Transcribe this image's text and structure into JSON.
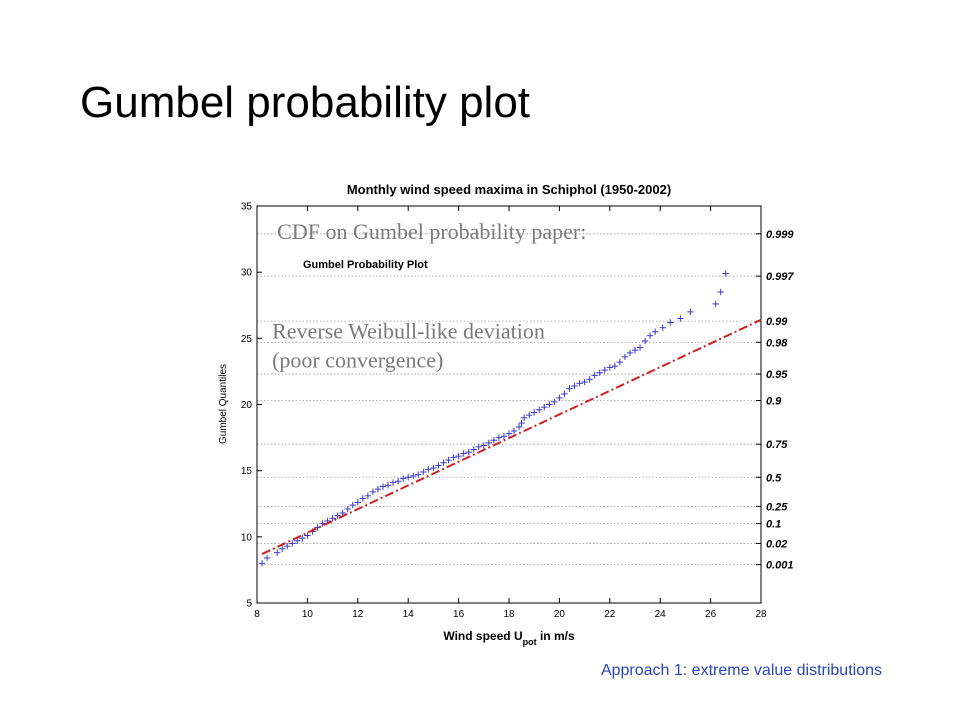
{
  "slide": {
    "title": "Gumbel probability plot",
    "footer": "Approach 1: extreme value distributions"
  },
  "chart_data": {
    "type": "scatter",
    "title": "Monthly wind speed maxima in Schiphol (1950-2002)",
    "subtitle": "Gumbel Probability Plot",
    "xlabel_main": "Wind speed U",
    "xlabel_sub": "pot",
    "xlabel_tail": " in m/s",
    "ylabel": "Gumbel Quantiles",
    "xlim": [
      8,
      28
    ],
    "ylim": [
      5,
      35
    ],
    "xticks": [
      8,
      10,
      12,
      14,
      16,
      18,
      20,
      22,
      24,
      26,
      28
    ],
    "yticks": [
      5,
      10,
      15,
      20,
      25,
      30,
      35
    ],
    "probability_ticks": [
      {
        "label": "0.999",
        "y": 32.9
      },
      {
        "label": "0.997",
        "y": 29.7
      },
      {
        "label": "0.99",
        "y": 26.3
      },
      {
        "label": "0.98",
        "y": 24.7
      },
      {
        "label": "0.95",
        "y": 22.3
      },
      {
        "label": "0.9",
        "y": 20.3
      },
      {
        "label": "0.75",
        "y": 17.0
      },
      {
        "label": "0.5",
        "y": 14.5
      },
      {
        "label": "0.25",
        "y": 12.3
      },
      {
        "label": "0.1",
        "y": 11.0
      },
      {
        "label": "0.02",
        "y": 9.5
      },
      {
        "label": "0.001",
        "y": 7.9
      }
    ],
    "grid": "horizontal dotted at probability ticks",
    "series": [
      {
        "kind": "markers",
        "color": "#3a3acc",
        "x": [
          8.2,
          8.4,
          8.8,
          9.0,
          9.2,
          9.4,
          9.6,
          9.8,
          10.0,
          10.2,
          10.4,
          10.6,
          10.8,
          11.0,
          11.2,
          11.4,
          11.6,
          11.8,
          12.0,
          12.2,
          12.4,
          12.6,
          12.8,
          13.0,
          13.2,
          13.4,
          13.6,
          13.8,
          14.0,
          14.2,
          14.4,
          14.6,
          14.8,
          15.0,
          15.2,
          15.4,
          15.6,
          15.8,
          16.0,
          16.2,
          16.4,
          16.6,
          16.8,
          17.0,
          17.2,
          17.4,
          17.6,
          17.8,
          18.0,
          18.2,
          18.4,
          18.5,
          18.6,
          18.8,
          19.0,
          19.2,
          19.4,
          19.6,
          19.8,
          20.0,
          20.2,
          20.4,
          20.6,
          20.8,
          21.0,
          21.2,
          21.4,
          21.6,
          21.8,
          22.0,
          22.2,
          22.4,
          22.6,
          22.8,
          23.0,
          23.2,
          23.4,
          23.6,
          23.8,
          24.1,
          24.4,
          24.8,
          25.2,
          26.2,
          26.4,
          26.6
        ],
        "y": [
          8.0,
          8.4,
          8.8,
          9.1,
          9.3,
          9.5,
          9.7,
          9.9,
          10.1,
          10.4,
          10.7,
          11.0,
          11.2,
          11.4,
          11.6,
          11.8,
          12.1,
          12.4,
          12.6,
          12.9,
          13.1,
          13.4,
          13.6,
          13.8,
          13.9,
          14.1,
          14.2,
          14.4,
          14.5,
          14.6,
          14.7,
          14.9,
          15.1,
          15.2,
          15.4,
          15.6,
          15.8,
          16.0,
          16.1,
          16.3,
          16.4,
          16.6,
          16.8,
          16.9,
          17.1,
          17.3,
          17.5,
          17.6,
          17.8,
          18.0,
          18.3,
          18.6,
          19.0,
          19.2,
          19.4,
          19.6,
          19.8,
          20.0,
          20.2,
          20.5,
          20.8,
          21.2,
          21.4,
          21.6,
          21.7,
          21.9,
          22.2,
          22.4,
          22.6,
          22.8,
          22.9,
          23.2,
          23.6,
          23.9,
          24.1,
          24.3,
          24.8,
          25.2,
          25.5,
          25.8,
          26.2,
          26.5,
          27.0,
          27.6,
          28.5,
          29.9
        ]
      },
      {
        "kind": "fit-line",
        "color": "#cc2222",
        "x": [
          8.2,
          28.0
        ],
        "y": [
          8.7,
          26.4
        ]
      }
    ],
    "annotations": [
      {
        "text": "CDF on Gumbel probability paper:",
        "x": 8.8,
        "y": 32.5
      },
      {
        "text": "Reverse Weibull-like deviation",
        "x": 8.6,
        "y": 25.0
      },
      {
        "text": "(poor convergence)",
        "x": 8.6,
        "y": 22.8
      }
    ]
  }
}
